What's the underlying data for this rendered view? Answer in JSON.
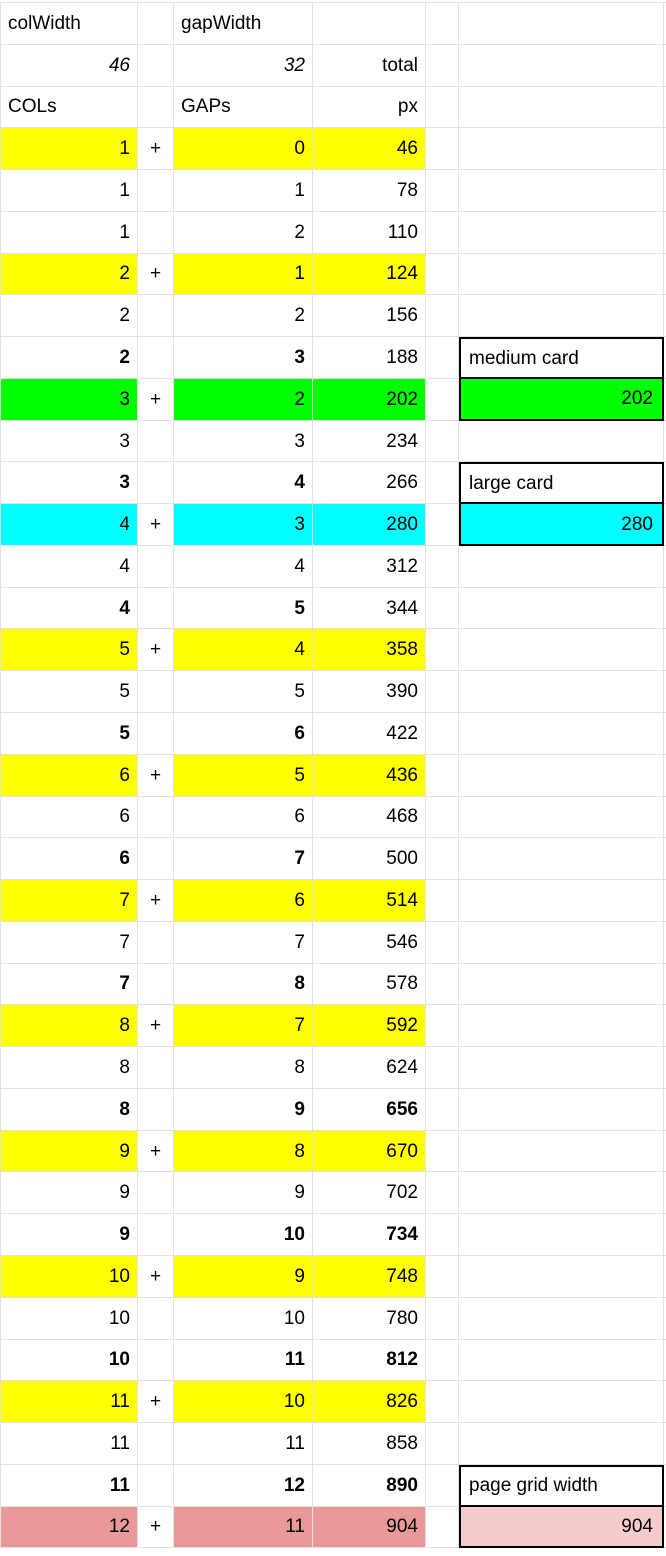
{
  "sheet": {
    "headers": {
      "colWidth_label": "colWidth",
      "colWidth_value": "46",
      "gapWidth_label": "gapWidth",
      "gapWidth_value": "32",
      "total_label": "total",
      "cols_header": "COLs",
      "gaps_header": "GAPs",
      "px_header": "px"
    },
    "colors": {
      "yellow": "#ffff00",
      "green": "#00ff00",
      "cyan": "#00ffff",
      "salmon": "#ea9999",
      "light_pink": "#f4cccc",
      "gridline": "#e2e2e2",
      "card_border": "#000000"
    },
    "rows": [
      {
        "cols": "1",
        "plus": "+",
        "gaps": "0",
        "px": "46",
        "bg": "yellow"
      },
      {
        "cols": "1",
        "plus": "",
        "gaps": "1",
        "px": "78"
      },
      {
        "cols": "1",
        "plus": "",
        "gaps": "2",
        "px": "110"
      },
      {
        "cols": "2",
        "plus": "+",
        "gaps": "1",
        "px": "124",
        "bg": "yellow"
      },
      {
        "cols": "2",
        "plus": "",
        "gaps": "2",
        "px": "156"
      },
      {
        "cols": "2",
        "plus": "",
        "gaps": "3",
        "px": "188",
        "bold": "cg",
        "card": {
          "part": "label",
          "text": "medium card"
        }
      },
      {
        "cols": "3",
        "plus": "+",
        "gaps": "2",
        "px": "202",
        "bg": "green",
        "card": {
          "part": "value",
          "text": "202",
          "bg": "green"
        }
      },
      {
        "cols": "3",
        "plus": "",
        "gaps": "3",
        "px": "234"
      },
      {
        "cols": "3",
        "plus": "",
        "gaps": "4",
        "px": "266",
        "bold": "cg",
        "card": {
          "part": "label",
          "text": "large card"
        }
      },
      {
        "cols": "4",
        "plus": "+",
        "gaps": "3",
        "px": "280",
        "bg": "cyan",
        "card": {
          "part": "value",
          "text": "280",
          "bg": "cyan"
        }
      },
      {
        "cols": "4",
        "plus": "",
        "gaps": "4",
        "px": "312"
      },
      {
        "cols": "4",
        "plus": "",
        "gaps": "5",
        "px": "344",
        "bold": "cg"
      },
      {
        "cols": "5",
        "plus": "+",
        "gaps": "4",
        "px": "358",
        "bg": "yellow"
      },
      {
        "cols": "5",
        "plus": "",
        "gaps": "5",
        "px": "390"
      },
      {
        "cols": "5",
        "plus": "",
        "gaps": "6",
        "px": "422",
        "bold": "cg"
      },
      {
        "cols": "6",
        "plus": "+",
        "gaps": "5",
        "px": "436",
        "bg": "yellow"
      },
      {
        "cols": "6",
        "plus": "",
        "gaps": "6",
        "px": "468"
      },
      {
        "cols": "6",
        "plus": "",
        "gaps": "7",
        "px": "500",
        "bold": "cg"
      },
      {
        "cols": "7",
        "plus": "+",
        "gaps": "6",
        "px": "514",
        "bg": "yellow"
      },
      {
        "cols": "7",
        "plus": "",
        "gaps": "7",
        "px": "546"
      },
      {
        "cols": "7",
        "plus": "",
        "gaps": "8",
        "px": "578",
        "bold": "cg"
      },
      {
        "cols": "8",
        "plus": "+",
        "gaps": "7",
        "px": "592",
        "bg": "yellow"
      },
      {
        "cols": "8",
        "plus": "",
        "gaps": "8",
        "px": "624"
      },
      {
        "cols": "8",
        "plus": "",
        "gaps": "9",
        "px": "656",
        "bold": "all"
      },
      {
        "cols": "9",
        "plus": "+",
        "gaps": "8",
        "px": "670",
        "bg": "yellow"
      },
      {
        "cols": "9",
        "plus": "",
        "gaps": "9",
        "px": "702"
      },
      {
        "cols": "9",
        "plus": "",
        "gaps": "10",
        "px": "734",
        "bold": "all"
      },
      {
        "cols": "10",
        "plus": "+",
        "gaps": "9",
        "px": "748",
        "bg": "yellow"
      },
      {
        "cols": "10",
        "plus": "",
        "gaps": "10",
        "px": "780"
      },
      {
        "cols": "10",
        "plus": "",
        "gaps": "11",
        "px": "812",
        "bold": "all"
      },
      {
        "cols": "11",
        "plus": "+",
        "gaps": "10",
        "px": "826",
        "bg": "yellow"
      },
      {
        "cols": "11",
        "plus": "",
        "gaps": "11",
        "px": "858"
      },
      {
        "cols": "11",
        "plus": "",
        "gaps": "12",
        "px": "890",
        "bold": "all",
        "card": {
          "part": "label",
          "text": "page grid width"
        }
      },
      {
        "cols": "12",
        "plus": "+",
        "gaps": "11",
        "px": "904",
        "bg": "salmon",
        "card": {
          "part": "value",
          "text": "904",
          "bg": "light_pink"
        }
      }
    ]
  }
}
